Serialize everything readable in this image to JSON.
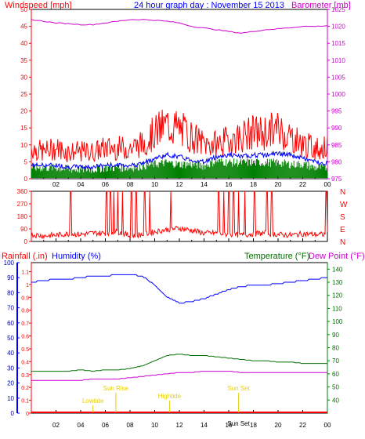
{
  "header": {
    "left_label": "Windspeed [mph]",
    "title": "24 hour graph day : November 15 2013",
    "right_label": "Barometer [mb]"
  },
  "colors": {
    "red": "#ff0000",
    "blue": "#0000ff",
    "green": "#008000",
    "magenta": "#d000d0",
    "yellow": "#e8d000",
    "frame": "#000000",
    "dark_red": "#cc0000",
    "dark_green": "#007000",
    "dark_blue": "#0000aa"
  },
  "x_axis": {
    "ticks": [
      "02",
      "04",
      "06",
      "08",
      "10",
      "12",
      "14",
      "16",
      "18",
      "20",
      "22",
      "00"
    ]
  },
  "panel1": {
    "left_ticks": [
      "0",
      "5",
      "10",
      "15",
      "20",
      "25",
      "30",
      "35",
      "40",
      "45",
      "50"
    ],
    "right_ticks": [
      "975",
      "980",
      "985",
      "990",
      "995",
      "1000",
      "1005",
      "1010",
      "1015",
      "1020",
      "1025"
    ]
  },
  "panel2": {
    "left_ticks": [
      "0",
      "90",
      "180",
      "270",
      "360"
    ],
    "right_labels": [
      "N",
      "W",
      "S",
      "E",
      "N"
    ]
  },
  "panel3": {
    "left_label": "Rainfall (.in)",
    "left_label2": "Humidity (%)",
    "right_label": "Temperature (°F)",
    "right_label2": "Dew Point (°F)",
    "humidity_ticks": [
      "0",
      "10",
      "20",
      "30",
      "40",
      "50",
      "60",
      "70",
      "80",
      "90",
      "100"
    ],
    "rain_ticks": [
      "0",
      "0.1",
      "0.2",
      "0.3",
      "0.4",
      "0.5",
      "0.6",
      "0.7",
      "0.8",
      "0.9",
      "1",
      "1.1"
    ],
    "temp_ticks": [
      "40",
      "50",
      "60",
      "70",
      "80",
      "90",
      "100",
      "110",
      "120",
      "130",
      "140"
    ],
    "events": [
      {
        "label": "Lowtide",
        "hour": 5.0
      },
      {
        "label": "Sun Rise",
        "hour": 6.85
      },
      {
        "label": "Hightide",
        "hour": 11.2
      },
      {
        "label": "Sun Set",
        "hour": 16.8
      },
      {
        "label": "Sun Set",
        "hour": 16.8
      }
    ]
  },
  "chart_data": [
    {
      "type": "line",
      "title": "24 hour graph day : November 15 2013",
      "xlabel": "",
      "ylabel": "Windspeed [mph]",
      "ylabel_right": "Barometer [mb]",
      "ylim": [
        0,
        50
      ],
      "ylim_right": [
        975,
        1025
      ],
      "x": [
        0,
        1,
        2,
        3,
        4,
        5,
        6,
        7,
        8,
        9,
        10,
        11,
        12,
        13,
        14,
        15,
        16,
        17,
        18,
        19,
        20,
        21,
        22,
        23,
        24
      ],
      "series": [
        {
          "name": "gust",
          "axis": "left",
          "values": [
            8,
            7,
            8,
            7,
            7,
            7,
            8,
            8,
            8,
            9,
            12,
            14,
            13,
            11,
            9,
            9,
            10,
            11,
            12,
            12,
            13,
            11,
            9,
            8,
            8
          ]
        },
        {
          "name": "average",
          "axis": "left",
          "values": [
            4,
            4,
            4,
            3.5,
            3.5,
            3.5,
            4,
            4,
            4,
            4.5,
            6,
            7,
            6.5,
            5.5,
            5,
            6.5,
            7,
            6.5,
            7,
            7,
            7.5,
            7,
            6,
            5,
            4.5
          ]
        },
        {
          "name": "minimum",
          "axis": "left",
          "values": [
            2,
            2,
            2,
            1.5,
            1.5,
            1.5,
            2,
            2,
            2,
            2.5,
            3,
            3.5,
            3,
            3,
            2.5,
            4,
            3.5,
            3.5,
            3.5,
            3.5,
            3.5,
            3,
            3,
            2,
            2
          ]
        },
        {
          "name": "barometer",
          "axis": "right",
          "values": [
            1022,
            1021.5,
            1021,
            1020.8,
            1020.5,
            1020.5,
            1021,
            1021.5,
            1022,
            1022,
            1021.8,
            1021.5,
            1021,
            1020,
            1019.5,
            1019,
            1018.5,
            1018,
            1018.5,
            1019,
            1019.3,
            1019.6,
            1020,
            1020,
            1020.2
          ]
        }
      ]
    },
    {
      "type": "line",
      "title": "",
      "xlabel": "",
      "ylabel": "",
      "ylim": [
        0,
        360
      ],
      "x": [
        0,
        1,
        2,
        3,
        4,
        5,
        6,
        7,
        8,
        9,
        10,
        11,
        12,
        13,
        14,
        15,
        16,
        17,
        18,
        19,
        20,
        21,
        22,
        23,
        24
      ],
      "series": [
        {
          "name": "wind direction",
          "values": [
            50,
            40,
            45,
            55,
            50,
            60,
            60,
            70,
            40,
            50,
            70,
            85,
            95,
            80,
            60,
            60,
            50,
            45,
            55,
            60,
            50,
            45,
            55,
            50,
            50
          ]
        }
      ]
    },
    {
      "type": "line",
      "title": "",
      "xlabel": "",
      "ylabel": "Humidity (%)",
      "ylabel_right": "Temperature (°F)",
      "ylim": [
        0,
        100
      ],
      "ylim_right": [
        30,
        145
      ],
      "x": [
        0,
        1,
        2,
        3,
        4,
        5,
        6,
        7,
        8,
        9,
        10,
        11,
        12,
        13,
        14,
        15,
        16,
        17,
        18,
        19,
        20,
        21,
        22,
        23,
        24
      ],
      "series": [
        {
          "name": "Humidity (%)",
          "axis": "left",
          "values": [
            87,
            88,
            89,
            89,
            90,
            91,
            91,
            92,
            92,
            91,
            85,
            77,
            73,
            74,
            76,
            79,
            82,
            84,
            85,
            85,
            86,
            87,
            88,
            89,
            90
          ]
        },
        {
          "name": "Temperature (°F)",
          "axis": "right",
          "values": [
            62,
            62,
            62,
            62,
            63,
            62,
            63,
            63,
            64,
            66,
            70,
            74,
            75,
            74,
            74,
            73,
            72,
            71,
            70,
            70,
            69,
            69,
            68,
            68,
            68
          ]
        },
        {
          "name": "Dew Point (°F)",
          "axis": "right",
          "values": [
            55,
            55,
            55,
            55,
            55,
            56,
            56,
            56,
            57,
            58,
            59,
            60,
            61,
            61,
            62,
            62,
            62,
            61,
            61,
            61,
            61,
            61,
            61,
            61,
            61
          ]
        },
        {
          "name": "Rainfall (.in)",
          "axis": "left",
          "values": [
            0,
            0,
            0,
            0,
            0,
            0,
            0,
            0,
            0,
            0,
            0,
            0,
            0,
            0,
            0,
            0,
            0,
            0,
            0,
            0,
            0,
            0,
            0,
            0,
            0
          ]
        }
      ]
    }
  ]
}
